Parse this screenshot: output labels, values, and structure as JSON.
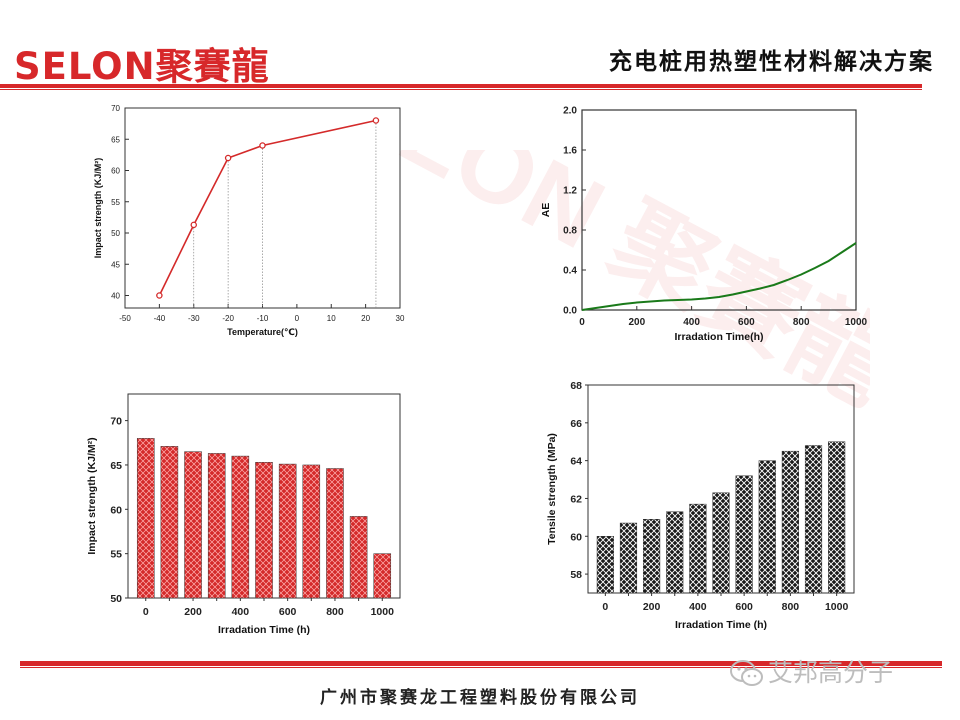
{
  "header": {
    "logo_text": "SELON聚賽龍",
    "title": "充电桩用热塑性材料解决方案"
  },
  "footer": {
    "company": "广州市聚赛龙工程塑料股份有限公司",
    "wechat_label": "艾邦高分子"
  },
  "watermark": {
    "text": "SELON 聚賽龍"
  },
  "colors": {
    "brand_red": "#d7282a",
    "chart_red": "#d42a2a",
    "ae_green": "#1a7a1a",
    "bar_black": "#1a1a1a"
  },
  "chart_data": [
    {
      "type": "line",
      "id": "temp-impact",
      "x": [
        -40,
        -30,
        -20,
        -10,
        23
      ],
      "values": [
        40,
        51.3,
        62,
        64,
        68
      ],
      "xlabel": "Temperature(℃)",
      "ylabel": "Impact strength (KJ/M²)",
      "xlim": [
        -50,
        30
      ],
      "ylim": [
        38,
        70
      ],
      "xticks": [
        -50,
        -40,
        -30,
        -20,
        -10,
        0,
        10,
        20,
        30
      ],
      "yticks": [
        40,
        45,
        50,
        55,
        60,
        65,
        70
      ],
      "drop_lines": true
    },
    {
      "type": "line",
      "id": "irradiation-ae",
      "x": [
        0,
        50,
        100,
        150,
        200,
        250,
        300,
        350,
        400,
        450,
        500,
        550,
        600,
        650,
        700,
        750,
        800,
        850,
        900,
        950,
        1000
      ],
      "values": [
        0.0,
        0.02,
        0.04,
        0.06,
        0.075,
        0.085,
        0.095,
        0.1,
        0.105,
        0.115,
        0.13,
        0.155,
        0.185,
        0.215,
        0.25,
        0.3,
        0.355,
        0.42,
        0.49,
        0.58,
        0.67
      ],
      "xlabel": "Irradation Time(h)",
      "ylabel": "AE",
      "xlim": [
        0,
        1000
      ],
      "ylim": [
        0,
        2.0
      ],
      "xticks": [
        0,
        200,
        400,
        600,
        800,
        1000
      ],
      "yticks": [
        "0.0",
        "0.4",
        "0.8",
        "1.2",
        "1.6",
        "2.0"
      ]
    },
    {
      "type": "bar",
      "id": "irradiation-impact",
      "categories": [
        0,
        100,
        200,
        300,
        400,
        500,
        600,
        700,
        800,
        900,
        1000
      ],
      "values": [
        68,
        67.1,
        66.5,
        66.3,
        66,
        65.3,
        65.1,
        65,
        64.6,
        59.2,
        55
      ],
      "xlabel": "Irradation Time (h)",
      "ylabel": "Impact strength (KJ/M²)",
      "ylim": [
        50,
        73
      ],
      "xticks": [
        0,
        200,
        400,
        600,
        800,
        1000
      ],
      "yticks": [
        50,
        55,
        60,
        65,
        70
      ]
    },
    {
      "type": "bar",
      "id": "irradiation-tensile",
      "categories": [
        0,
        100,
        200,
        300,
        400,
        500,
        600,
        700,
        800,
        900,
        1000
      ],
      "values": [
        60,
        60.7,
        60.9,
        61.3,
        61.7,
        62.3,
        63.2,
        64,
        64.5,
        64.8,
        65
      ],
      "xlabel": "Irradation Time (h)",
      "ylabel": "Tensile strength (MPa)",
      "ylim": [
        57,
        68
      ],
      "xticks": [
        0,
        200,
        400,
        600,
        800,
        1000
      ],
      "yticks": [
        58,
        60,
        62,
        64,
        66,
        68
      ]
    }
  ]
}
